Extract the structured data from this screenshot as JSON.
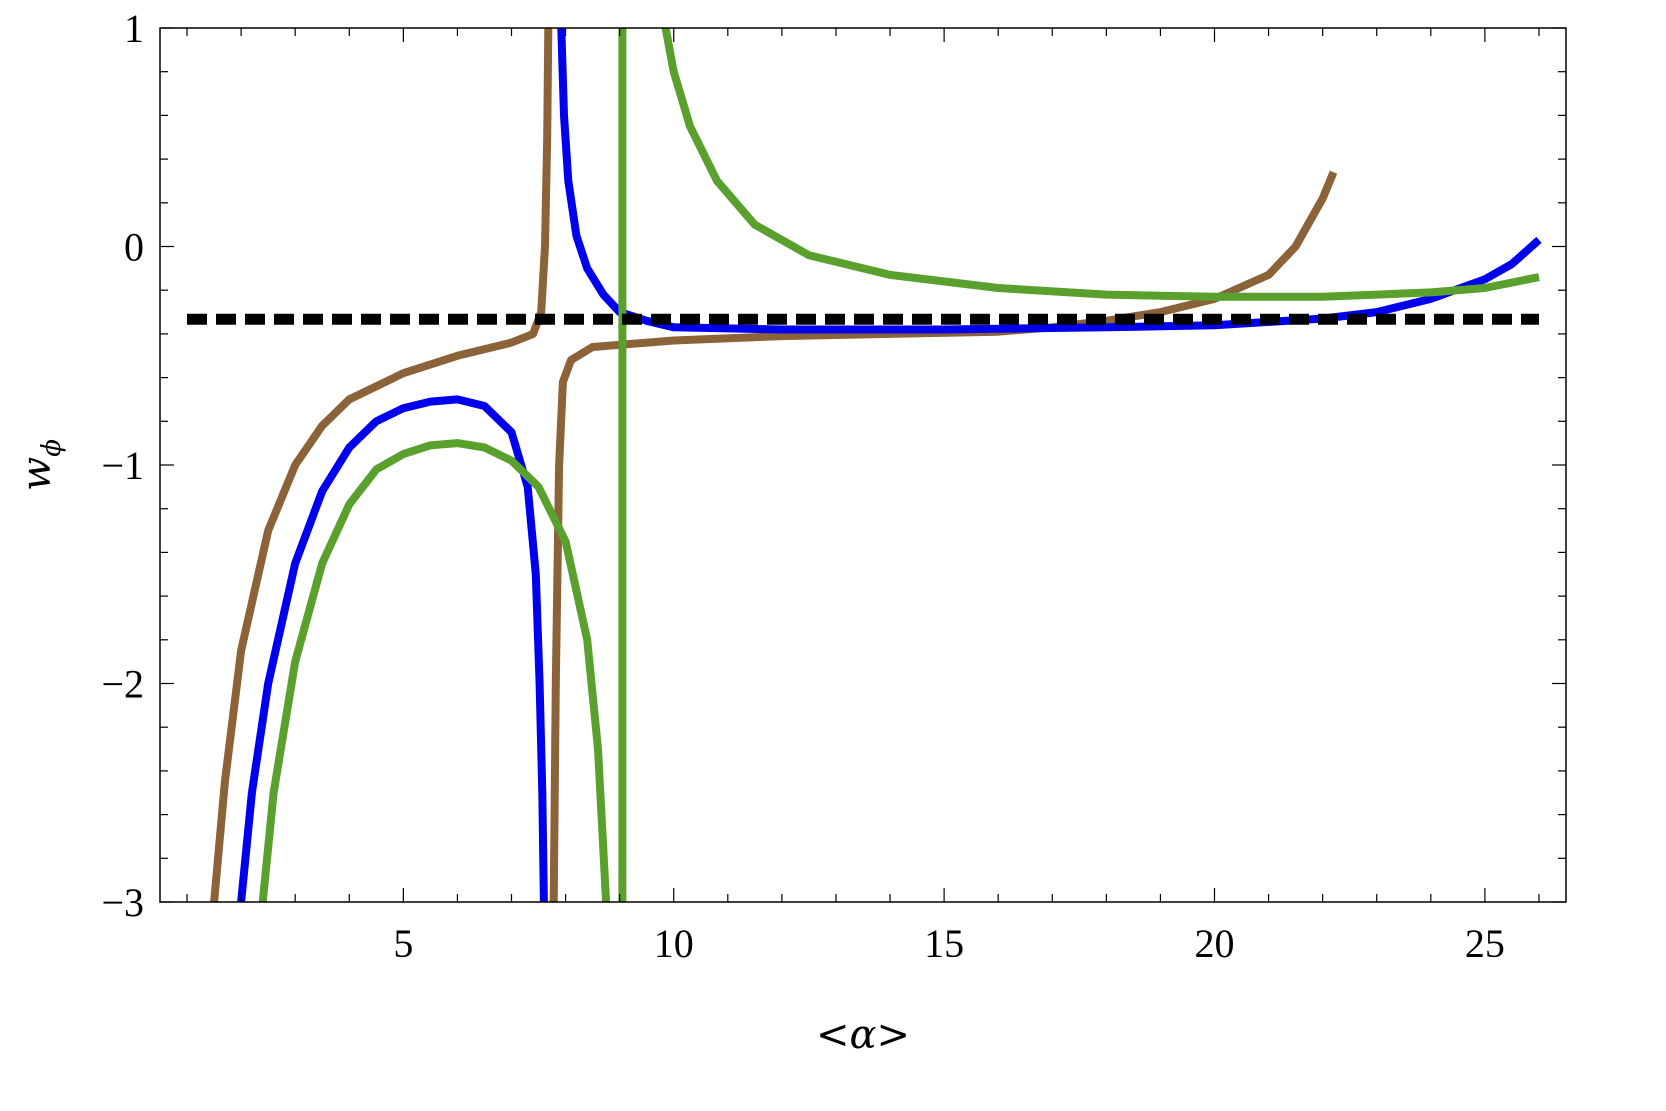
{
  "chart_data": {
    "type": "line",
    "xlabel": "<α>",
    "ylabel": "w",
    "ylabel_sub": "ϕ",
    "xlim": [
      0.5,
      26.5
    ],
    "ylim": [
      -3,
      1
    ],
    "xticks": [
      5,
      10,
      15,
      20,
      25
    ],
    "xtick_labels": [
      "5",
      "10",
      "15",
      "20",
      "25"
    ],
    "yticks": [
      -3,
      -2,
      -1,
      0,
      1
    ],
    "ytick_labels": [
      "−3",
      "−2",
      "−1",
      "0",
      "1"
    ],
    "grid": false,
    "legend": "none",
    "series": [
      {
        "color": "#8c6239",
        "segments": [
          [
            [
              1.5,
              -3.0
            ],
            [
              1.7,
              -2.45
            ],
            [
              2.0,
              -1.85
            ],
            [
              2.5,
              -1.3
            ],
            [
              3.0,
              -1.0
            ],
            [
              3.5,
              -0.82
            ],
            [
              4.0,
              -0.7
            ],
            [
              5.0,
              -0.58
            ],
            [
              6.0,
              -0.5
            ],
            [
              7.0,
              -0.44
            ],
            [
              7.4,
              -0.4
            ],
            [
              7.55,
              -0.3
            ],
            [
              7.62,
              0.0
            ],
            [
              7.66,
              0.5
            ],
            [
              7.68,
              1.0
            ]
          ],
          [
            [
              7.78,
              -3.0
            ],
            [
              7.82,
              -2.0
            ],
            [
              7.88,
              -1.0
            ],
            [
              7.95,
              -0.62
            ],
            [
              8.1,
              -0.52
            ],
            [
              8.5,
              -0.46
            ],
            [
              10.0,
              -0.43
            ],
            [
              12.0,
              -0.41
            ],
            [
              14.0,
              -0.4
            ],
            [
              16.0,
              -0.39
            ],
            [
              17.0,
              -0.37
            ],
            [
              18.0,
              -0.34
            ],
            [
              19.0,
              -0.3
            ],
            [
              20.0,
              -0.24
            ],
            [
              21.0,
              -0.13
            ],
            [
              21.5,
              0.0
            ],
            [
              22.0,
              0.22
            ],
            [
              22.2,
              0.34
            ]
          ]
        ]
      },
      {
        "color": "#0000ee",
        "segments": [
          [
            [
              2.0,
              -3.0
            ],
            [
              2.2,
              -2.5
            ],
            [
              2.5,
              -2.0
            ],
            [
              3.0,
              -1.45
            ],
            [
              3.5,
              -1.12
            ],
            [
              4.0,
              -0.92
            ],
            [
              4.5,
              -0.8
            ],
            [
              5.0,
              -0.74
            ],
            [
              5.5,
              -0.71
            ],
            [
              6.0,
              -0.7
            ],
            [
              6.5,
              -0.73
            ],
            [
              7.0,
              -0.85
            ],
            [
              7.3,
              -1.1
            ],
            [
              7.45,
              -1.5
            ],
            [
              7.52,
              -2.0
            ],
            [
              7.57,
              -2.5
            ],
            [
              7.6,
              -3.0
            ]
          ],
          [
            [
              7.92,
              1.0
            ],
            [
              7.97,
              0.6
            ],
            [
              8.05,
              0.3
            ],
            [
              8.2,
              0.05
            ],
            [
              8.4,
              -0.1
            ],
            [
              8.7,
              -0.22
            ],
            [
              9.0,
              -0.3
            ],
            [
              9.5,
              -0.34
            ],
            [
              10.0,
              -0.37
            ],
            [
              12.0,
              -0.38
            ],
            [
              15.0,
              -0.38
            ],
            [
              18.0,
              -0.37
            ],
            [
              20.0,
              -0.36
            ],
            [
              22.0,
              -0.33
            ],
            [
              23.0,
              -0.3
            ],
            [
              24.0,
              -0.24
            ],
            [
              25.0,
              -0.15
            ],
            [
              25.5,
              -0.08
            ],
            [
              26.0,
              0.03
            ]
          ]
        ]
      },
      {
        "color": "#5aa02c",
        "segments": [
          [
            [
              2.4,
              -3.0
            ],
            [
              2.6,
              -2.5
            ],
            [
              3.0,
              -1.9
            ],
            [
              3.5,
              -1.45
            ],
            [
              4.0,
              -1.18
            ],
            [
              4.5,
              -1.02
            ],
            [
              5.0,
              -0.95
            ],
            [
              5.5,
              -0.91
            ],
            [
              6.0,
              -0.9
            ],
            [
              6.5,
              -0.92
            ],
            [
              7.0,
              -0.98
            ],
            [
              7.5,
              -1.1
            ],
            [
              8.0,
              -1.35
            ],
            [
              8.4,
              -1.8
            ],
            [
              8.6,
              -2.3
            ],
            [
              8.75,
              -3.0
            ]
          ],
          [
            [
              9.05,
              -3.0
            ],
            [
              9.05,
              1.0
            ]
          ],
          [
            [
              9.85,
              1.0
            ],
            [
              10.0,
              0.8
            ],
            [
              10.3,
              0.55
            ],
            [
              10.8,
              0.3
            ],
            [
              11.5,
              0.1
            ],
            [
              12.5,
              -0.04
            ],
            [
              14.0,
              -0.13
            ],
            [
              16.0,
              -0.19
            ],
            [
              18.0,
              -0.22
            ],
            [
              20.0,
              -0.23
            ],
            [
              22.0,
              -0.23
            ],
            [
              24.0,
              -0.21
            ],
            [
              25.0,
              -0.19
            ],
            [
              26.0,
              -0.14
            ]
          ]
        ]
      },
      {
        "color": "#000000",
        "dashed": true,
        "segments": [
          [
            [
              1.0,
              -0.333
            ],
            [
              26.0,
              -0.333
            ]
          ]
        ]
      }
    ]
  }
}
